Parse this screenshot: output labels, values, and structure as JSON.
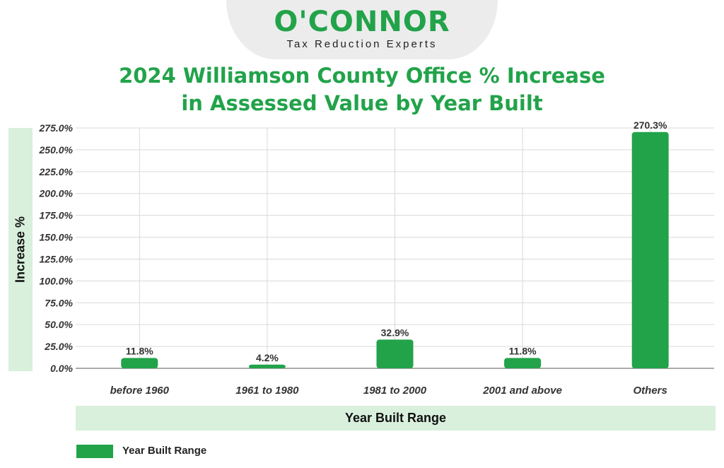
{
  "logo": {
    "brand": "O'CONNOR",
    "tagline": "Tax Reduction Experts"
  },
  "chart_data": {
    "type": "bar",
    "title_lines": [
      "2024 Williamson County Office % Increase",
      "in Assessed Value by Year Built"
    ],
    "xlabel": "Year Built Range",
    "ylabel": "Increase %",
    "categories": [
      "before 1960",
      "1961 to 1980",
      "1981 to 2000",
      "2001 and above",
      "Others"
    ],
    "series": [
      {
        "name": "Year Built Range",
        "values": [
          11.8,
          4.2,
          32.9,
          11.8,
          270.3
        ],
        "labels": [
          "11.8%",
          "4.2%",
          "32.9%",
          "11.8%",
          "270.3%"
        ]
      }
    ],
    "ylim": [
      0,
      275
    ],
    "yticks": [
      0,
      25,
      50,
      75,
      100,
      125,
      150,
      175,
      200,
      225,
      250,
      275
    ],
    "ytick_labels": [
      "0.0%",
      "25.0%",
      "50.0%",
      "75.0%",
      "100.0%",
      "125.0%",
      "150.0%",
      "175.0%",
      "200.0%",
      "225.0%",
      "250.0%",
      "275.0%"
    ],
    "grid": true,
    "legend_position": "bottom-left",
    "colors": {
      "bar": "#22a34a",
      "title": "#22a34a",
      "band": "#d8f0dc",
      "grid": "#d9d9d9"
    }
  }
}
